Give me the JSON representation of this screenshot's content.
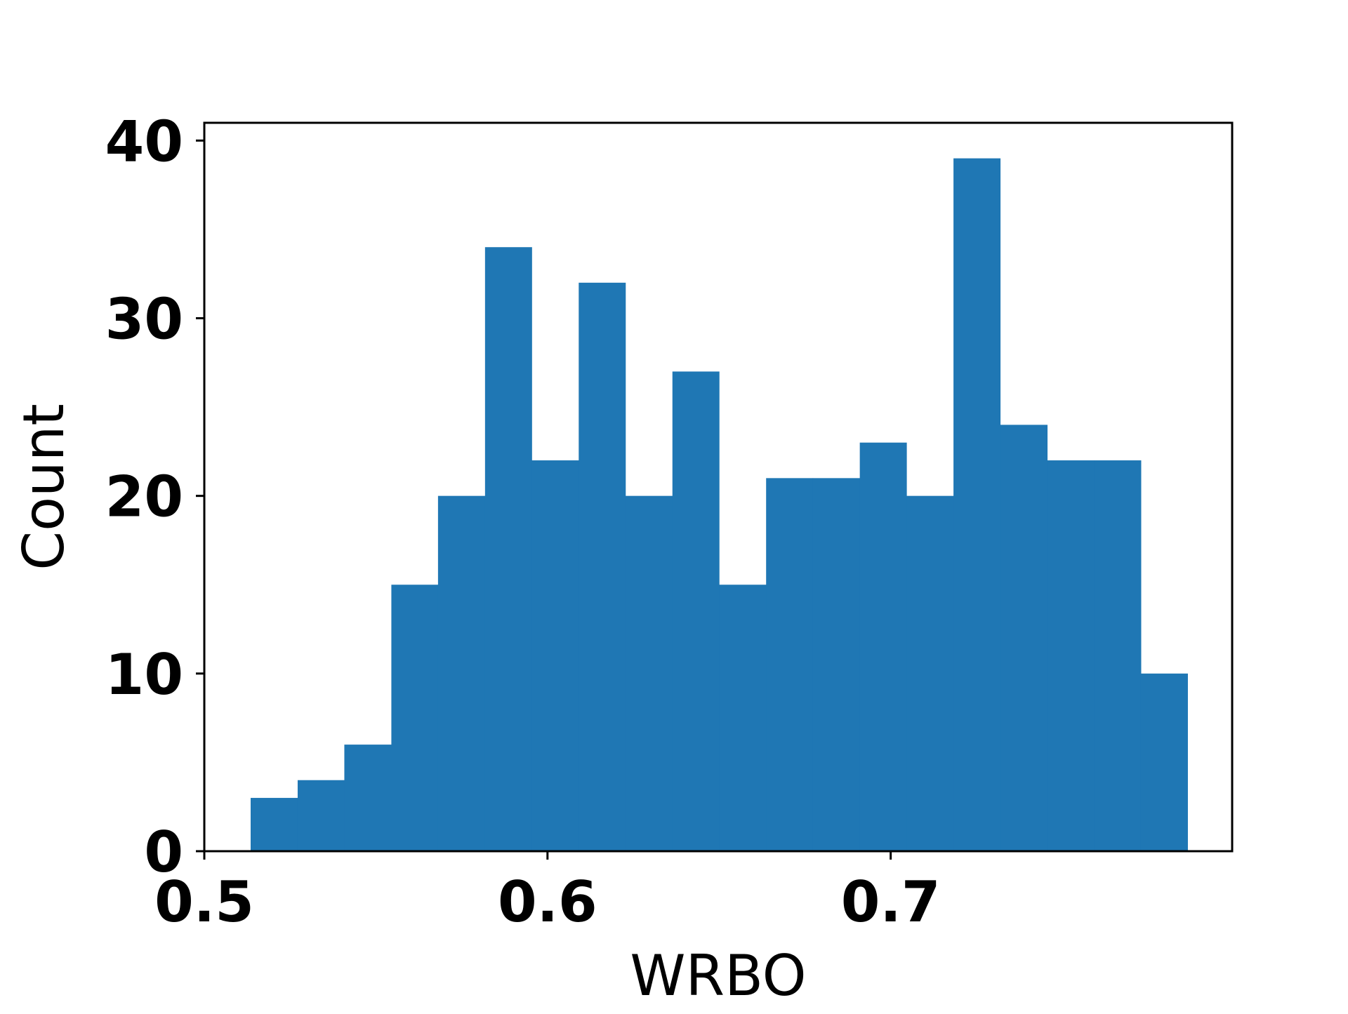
{
  "chart_data": {
    "type": "bar",
    "subtype": "histogram",
    "title": "",
    "xlabel": "WRBO",
    "ylabel": "Count",
    "xlim": [
      0.5,
      0.7995
    ],
    "ylim": [
      0,
      41
    ],
    "xticks": [
      0.5,
      0.6,
      0.7
    ],
    "xtick_labels": [
      "0.5",
      "0.6",
      "0.7"
    ],
    "yticks": [
      0,
      10,
      20,
      30,
      40
    ],
    "ytick_labels": [
      "0",
      "10",
      "20",
      "30",
      "40"
    ],
    "grid": false,
    "legend": "none",
    "bar_color": "#1f77b4",
    "bins": [
      {
        "x0": 0.5135,
        "x1": 0.5272,
        "count": 3
      },
      {
        "x0": 0.5272,
        "x1": 0.5408,
        "count": 4
      },
      {
        "x0": 0.5408,
        "x1": 0.5545,
        "count": 6
      },
      {
        "x0": 0.5545,
        "x1": 0.5681,
        "count": 15
      },
      {
        "x0": 0.5681,
        "x1": 0.5818,
        "count": 20
      },
      {
        "x0": 0.5818,
        "x1": 0.5954,
        "count": 34
      },
      {
        "x0": 0.5954,
        "x1": 0.6091,
        "count": 22
      },
      {
        "x0": 0.6091,
        "x1": 0.6227,
        "count": 32
      },
      {
        "x0": 0.6227,
        "x1": 0.6364,
        "count": 20
      },
      {
        "x0": 0.6364,
        "x1": 0.65,
        "count": 27
      },
      {
        "x0": 0.65,
        "x1": 0.6637,
        "count": 15
      },
      {
        "x0": 0.6637,
        "x1": 0.6773,
        "count": 21
      },
      {
        "x0": 0.6773,
        "x1": 0.691,
        "count": 21
      },
      {
        "x0": 0.691,
        "x1": 0.7046,
        "count": 23
      },
      {
        "x0": 0.7046,
        "x1": 0.7183,
        "count": 20
      },
      {
        "x0": 0.7183,
        "x1": 0.7319,
        "count": 39
      },
      {
        "x0": 0.7319,
        "x1": 0.7456,
        "count": 24
      },
      {
        "x0": 0.7456,
        "x1": 0.7592,
        "count": 22
      },
      {
        "x0": 0.7592,
        "x1": 0.7729,
        "count": 22
      },
      {
        "x0": 0.7729,
        "x1": 0.7865,
        "count": 10
      }
    ]
  }
}
